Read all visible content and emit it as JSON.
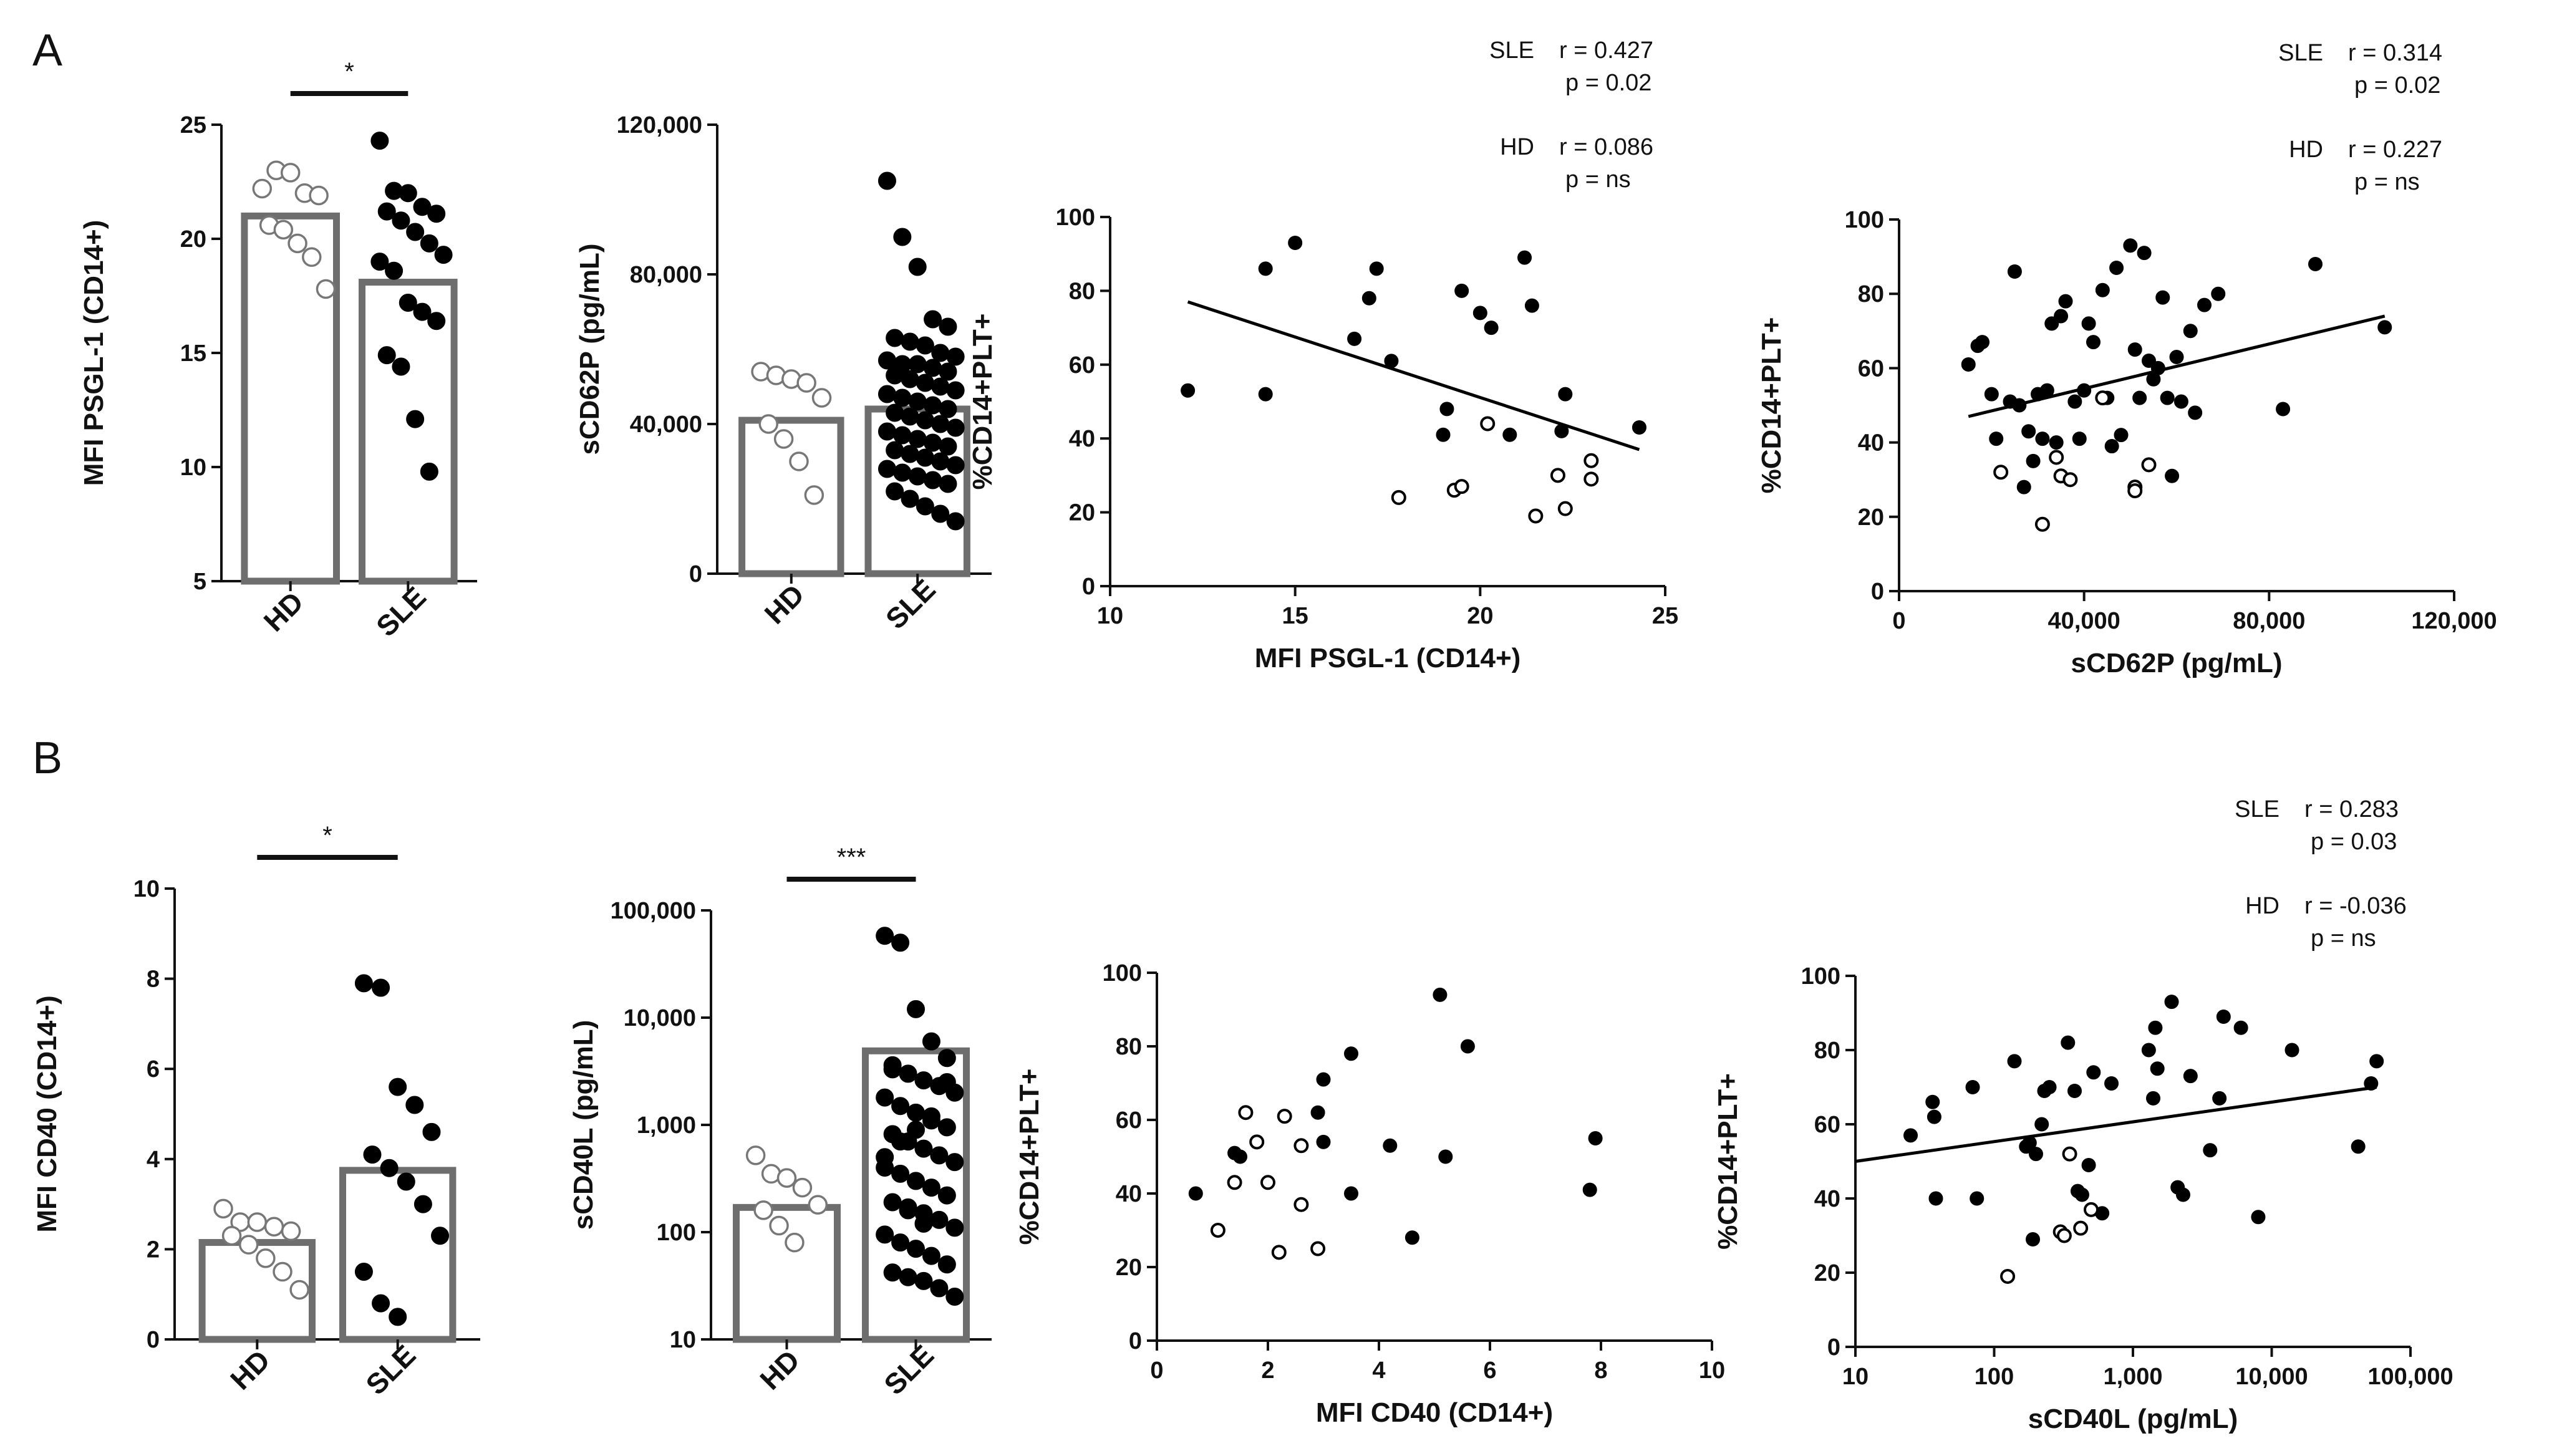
{
  "panel_labels": {
    "A": "A",
    "B": "B"
  },
  "chart_data": [
    {
      "id": "a1",
      "type": "bar",
      "panel": "A",
      "ylabel": "MFI PSGL-1 (CD14+)",
      "ylim": [
        5,
        25
      ],
      "yscale": "linear",
      "yticks": [
        5,
        10,
        15,
        20,
        25
      ],
      "ytick_labels": [
        "5",
        "10",
        "15",
        "20",
        "25"
      ],
      "categories": [
        "HD",
        "SLE"
      ],
      "bar_values": [
        21.0,
        18.1
      ],
      "significance": "*",
      "points": [
        [
          22.2,
          23.0,
          22.9,
          22.0,
          21.9,
          20.6,
          20.4,
          19.8,
          19.2,
          17.8
        ],
        [
          24.3,
          22.1,
          22.0,
          21.4,
          21.1,
          21.2,
          20.8,
          20.3,
          19.8,
          19.3,
          19.0,
          18.6,
          17.2,
          16.8,
          16.4,
          14.9,
          14.4,
          12.1,
          9.8
        ]
      ]
    },
    {
      "id": "a2",
      "type": "bar",
      "panel": "A",
      "ylabel": "sCD62P (pg/mL)",
      "ylim": [
        0,
        120000
      ],
      "yscale": "linear",
      "yticks": [
        0,
        40000,
        80000,
        120000
      ],
      "ytick_labels": [
        "0",
        "40,000",
        "80,000",
        "120,000"
      ],
      "categories": [
        "HD",
        "SLE"
      ],
      "bar_values": [
        41000,
        44000
      ],
      "significance": "",
      "points": [
        [
          54000,
          53000,
          52000,
          51000,
          47000,
          40000,
          36000,
          30000,
          21000
        ],
        [
          105000,
          90000,
          82000,
          68000,
          66000,
          63000,
          62000,
          61000,
          59000,
          58000,
          57000,
          56000,
          56000,
          55000,
          54000,
          53000,
          52000,
          51000,
          50000,
          49000,
          48000,
          47000,
          46000,
          45000,
          44000,
          43000,
          42000,
          41000,
          40000,
          39000,
          38000,
          37000,
          36000,
          35000,
          34000,
          33000,
          32000,
          31000,
          30000,
          29000,
          28000,
          27000,
          26000,
          25000,
          24000,
          22000,
          20000,
          18000,
          16000,
          14000
        ]
      ]
    },
    {
      "id": "a3",
      "type": "scatter",
      "panel": "A",
      "xlabel": "MFI PSGL-1 (CD14+)",
      "ylabel": "%CD14+PLT+",
      "xlim": [
        10,
        25
      ],
      "ylim": [
        0,
        100
      ],
      "xticks": [
        10,
        15,
        20,
        25
      ],
      "xtick_labels": [
        "10",
        "15",
        "20",
        "25"
      ],
      "yticks": [
        0,
        20,
        40,
        60,
        80,
        100
      ],
      "ytick_labels": [
        "0",
        "20",
        "40",
        "60",
        "80",
        "100"
      ],
      "series": [
        {
          "fill": "filled",
          "x": [
            12.1,
            14.2,
            14.2,
            15.0,
            16.6,
            17.0,
            17.2,
            17.6,
            19.0,
            19.1,
            19.5,
            20.0,
            20.3,
            20.8,
            21.2,
            21.4,
            22.2,
            22.3,
            24.3
          ],
          "y": [
            53,
            86,
            52,
            93,
            67,
            78,
            86,
            61,
            41,
            48,
            80,
            74,
            70,
            41,
            89,
            76,
            42,
            52,
            43
          ]
        },
        {
          "fill": "open",
          "x": [
            17.8,
            19.3,
            19.5,
            20.2,
            21.5,
            22.1,
            22.3,
            23.0,
            23.0
          ],
          "y": [
            24,
            26,
            27,
            44,
            19,
            30,
            21,
            34,
            29
          ]
        }
      ],
      "fit_line": {
        "x": [
          12.1,
          24.3
        ],
        "y": [
          77,
          37
        ]
      },
      "stats": [
        {
          "group": "SLE",
          "r": "r = 0.427",
          "p": "p = 0.02"
        },
        {
          "group": "HD",
          "r": "r = 0.086",
          "p": "p = ns"
        }
      ]
    },
    {
      "id": "a4",
      "type": "scatter",
      "panel": "A",
      "xlabel": "sCD62P (pg/mL)",
      "ylabel": "%CD14+PLT+",
      "xlim": [
        0,
        120000
      ],
      "ylim": [
        0,
        100
      ],
      "xticks": [
        0,
        40000,
        80000,
        120000
      ],
      "xtick_labels": [
        "0",
        "40,000",
        "80,000",
        "120,000"
      ],
      "yticks": [
        0,
        20,
        40,
        60,
        80,
        100
      ],
      "ytick_labels": [
        "0",
        "20",
        "40",
        "60",
        "80",
        "100"
      ],
      "series": [
        {
          "fill": "filled",
          "x": [
            15000,
            17000,
            18000,
            20000,
            21000,
            24000,
            25000,
            26000,
            27000,
            28000,
            29000,
            30000,
            31000,
            32000,
            33000,
            34000,
            35000,
            36000,
            38000,
            39000,
            40000,
            41000,
            42000,
            44000,
            45000,
            46000,
            47000,
            48000,
            50000,
            51000,
            52000,
            53000,
            54000,
            55000,
            56000,
            57000,
            58000,
            59000,
            60000,
            61000,
            63000,
            64000,
            66000,
            69000,
            83000,
            90000,
            105000
          ],
          "y": [
            61,
            66,
            67,
            53,
            41,
            51,
            86,
            50,
            28,
            43,
            35,
            53,
            41,
            54,
            72,
            40,
            74,
            78,
            51,
            41,
            54,
            72,
            67,
            81,
            52,
            39,
            87,
            42,
            93,
            65,
            52,
            91,
            62,
            57,
            60,
            79,
            52,
            31,
            63,
            51,
            70,
            48,
            77,
            80,
            49,
            88,
            71
          ]
        },
        {
          "fill": "open",
          "x": [
            22000,
            31000,
            34000,
            35000,
            37000,
            44000,
            51000,
            51000,
            54000
          ],
          "y": [
            32,
            18,
            36,
            31,
            30,
            52,
            28,
            27,
            34
          ]
        }
      ],
      "fit_line": {
        "x": [
          15000,
          105000
        ],
        "y": [
          47,
          74
        ]
      },
      "stats": [
        {
          "group": "SLE",
          "r": "r = 0.314",
          "p": "p = 0.02"
        },
        {
          "group": "HD",
          "r": "r = 0.227",
          "p": "p = ns"
        }
      ]
    },
    {
      "id": "b1",
      "type": "bar",
      "panel": "B",
      "ylabel": "MFI CD40 (CD14+)",
      "ylim": [
        0,
        10
      ],
      "yscale": "linear",
      "yticks": [
        0,
        2,
        4,
        6,
        8,
        10
      ],
      "ytick_labels": [
        "0",
        "2",
        "4",
        "6",
        "8",
        "10"
      ],
      "categories": [
        "HD",
        "SLE"
      ],
      "bar_values": [
        2.15,
        3.75
      ],
      "significance": "*",
      "points": [
        [
          2.9,
          2.6,
          2.6,
          2.5,
          2.4,
          2.3,
          2.1,
          1.8,
          1.5,
          1.1
        ],
        [
          7.9,
          7.8,
          5.6,
          5.2,
          4.6,
          4.1,
          3.8,
          3.5,
          3.0,
          2.3,
          1.5,
          0.8,
          0.5
        ]
      ]
    },
    {
      "id": "b2",
      "type": "bar",
      "panel": "B",
      "ylabel": "sCD40L (pg/mL)",
      "ylim": [
        10,
        100000
      ],
      "yscale": "log",
      "yticks": [
        10,
        100,
        1000,
        10000,
        100000
      ],
      "ytick_labels": [
        "10",
        "100",
        "1,000",
        "10,000",
        "100,000"
      ],
      "categories": [
        "HD",
        "SLE"
      ],
      "bar_values": [
        170,
        4900
      ],
      "significance": "***",
      "points": [
        [
          520,
          350,
          320,
          260,
          180,
          160,
          115,
          80
        ],
        [
          58000,
          50000,
          12000,
          6000,
          4200,
          3600,
          3000,
          2600,
          2300,
          2000,
          1800,
          1500,
          1300,
          1100,
          950,
          820,
          700,
          600,
          520,
          450,
          400,
          350,
          300,
          260,
          220,
          190,
          170,
          150,
          130,
          110,
          95,
          80,
          70,
          60,
          50,
          42,
          38,
          35,
          30,
          25,
          500,
          700,
          900,
          1200,
          2500,
          3300,
          160,
          120
        ]
      ]
    },
    {
      "id": "b3",
      "type": "scatter",
      "panel": "B",
      "xlabel": "MFI CD40 (CD14+)",
      "ylabel": "%CD14+PLT+",
      "xlim": [
        0,
        10
      ],
      "ylim": [
        0,
        100
      ],
      "xticks": [
        0,
        2,
        4,
        6,
        8,
        10
      ],
      "xtick_labels": [
        "0",
        "2",
        "4",
        "6",
        "8",
        "10"
      ],
      "yticks": [
        0,
        20,
        40,
        60,
        80,
        100
      ],
      "ytick_labels": [
        "0",
        "20",
        "40",
        "60",
        "80",
        "100"
      ],
      "series": [
        {
          "fill": "filled",
          "x": [
            0.7,
            1.4,
            1.5,
            2.9,
            3.0,
            3.0,
            3.5,
            3.5,
            4.2,
            4.6,
            5.1,
            5.2,
            5.6,
            7.8,
            7.9
          ],
          "y": [
            40,
            51,
            50,
            62,
            71,
            54,
            78,
            40,
            53,
            28,
            94,
            50,
            80,
            41,
            55
          ]
        },
        {
          "fill": "open",
          "x": [
            1.1,
            1.4,
            1.6,
            1.8,
            2.0,
            2.2,
            2.3,
            2.6,
            2.6,
            2.9
          ],
          "y": [
            30,
            43,
            62,
            54,
            43,
            24,
            61,
            53,
            37,
            25
          ]
        }
      ],
      "fit_line": null,
      "stats": []
    },
    {
      "id": "b4",
      "type": "scatter",
      "panel": "B",
      "xlabel": "sCD40L (pg/mL)",
      "ylabel": "%CD14+PLT+",
      "xlim": [
        10,
        100000
      ],
      "ylim": [
        0,
        100
      ],
      "xscale": "log",
      "xticks": [
        10,
        100,
        1000,
        10000,
        100000
      ],
      "xtick_labels": [
        "10",
        "100",
        "1,000",
        "10,000",
        "100,000"
      ],
      "yticks": [
        0,
        20,
        40,
        60,
        80,
        100
      ],
      "ytick_labels": [
        "0",
        "20",
        "40",
        "60",
        "80",
        "100"
      ],
      "series": [
        {
          "fill": "filled",
          "x": [
            25,
            36,
            37,
            38,
            70,
            75,
            140,
            170,
            180,
            190,
            200,
            220,
            230,
            250,
            300,
            340,
            380,
            400,
            430,
            480,
            520,
            600,
            700,
            1300,
            1400,
            1450,
            1500,
            1900,
            2100,
            2300,
            2600,
            3600,
            4200,
            4500,
            6000,
            8000,
            14000,
            42000,
            52000,
            57000
          ],
          "y": [
            57,
            66,
            62,
            40,
            70,
            40,
            77,
            54,
            55,
            29,
            52,
            60,
            69,
            70,
            31,
            82,
            69,
            42,
            41,
            49,
            74,
            36,
            71,
            80,
            67,
            86,
            75,
            93,
            43,
            41,
            73,
            53,
            67,
            89,
            86,
            35,
            80,
            54,
            71,
            77
          ]
        },
        {
          "fill": "open",
          "x": [
            125,
            300,
            320,
            350,
            420,
            500
          ],
          "y": [
            19,
            31,
            30,
            52,
            32,
            37
          ]
        }
      ],
      "fit_line": {
        "x": [
          10,
          57000
        ],
        "y": [
          50,
          70
        ]
      },
      "stats": [
        {
          "group": "SLE",
          "r": "r = 0.283",
          "p": "p = 0.03"
        },
        {
          "group": "HD",
          "r": "r = -0.036",
          "p": "p = ns"
        }
      ]
    }
  ]
}
